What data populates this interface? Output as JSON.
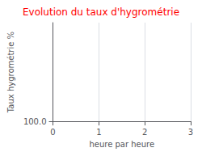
{
  "chart_data": {
    "type": "line",
    "title": "Evolution du taux d'hygrométrie",
    "xlabel": "heure par heure",
    "ylabel": "Taux hygrométrie %",
    "xlim": [
      0,
      3
    ],
    "xticks": [
      0,
      1,
      2,
      3
    ],
    "ylim": [
      100.0,
      133.0
    ],
    "yticks": [
      {
        "value": 100.0,
        "label": "100.0"
      }
    ],
    "grid": true
  }
}
